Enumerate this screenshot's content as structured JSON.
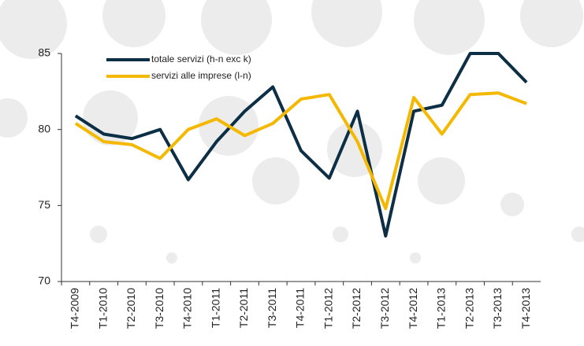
{
  "chart_data": {
    "type": "line",
    "categories": [
      "T4-2009",
      "T1-2010",
      "T2-2010",
      "T3-2010",
      "T4-2010",
      "T1-2011",
      "T2-2011",
      "T3-2011",
      "T4-2011",
      "T1-2012",
      "T2-2012",
      "T3-2012",
      "T4-2012",
      "T1-2013",
      "T2-2013",
      "T3-2013",
      "T4-2013"
    ],
    "series": [
      {
        "name": "totale servizi (h-n exc k)",
        "color": "#0d2f45",
        "values": [
          80.9,
          79.7,
          79.4,
          80.0,
          76.7,
          79.2,
          81.2,
          82.8,
          78.6,
          76.8,
          81.2,
          73.0,
          81.2,
          81.6,
          85.0,
          85.0,
          83.1
        ]
      },
      {
        "name": "servizi alle imprese (l-n)",
        "color": "#f5b800",
        "values": [
          80.4,
          79.2,
          79.0,
          78.1,
          80.0,
          80.7,
          79.6,
          80.4,
          82.0,
          82.3,
          79.2,
          74.8,
          82.1,
          79.7,
          82.3,
          82.4,
          81.7
        ]
      }
    ],
    "ylim": [
      70,
      85
    ],
    "yticks": [
      70,
      75,
      80,
      85
    ],
    "grid": false
  }
}
